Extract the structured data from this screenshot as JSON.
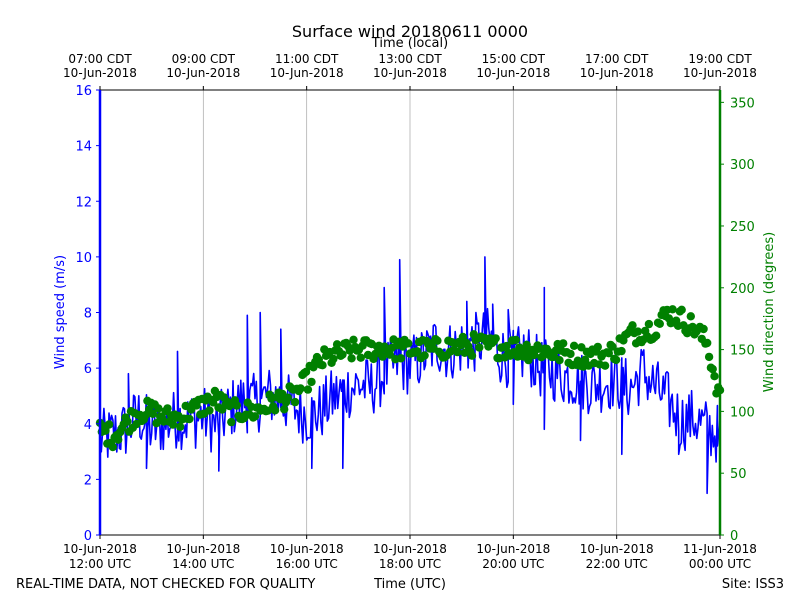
{
  "chart_data": {
    "type": "line",
    "title": "Surface wind 20180611 0000",
    "top_axis_label": "Time (local)",
    "top_ticks": [
      {
        "h": 0,
        "line1": "07:00 CDT",
        "line2": "10-Jun-2018"
      },
      {
        "h": 2,
        "line1": "09:00 CDT",
        "line2": "10-Jun-2018"
      },
      {
        "h": 4,
        "line1": "11:00 CDT",
        "line2": "10-Jun-2018"
      },
      {
        "h": 6,
        "line1": "13:00 CDT",
        "line2": "10-Jun-2018"
      },
      {
        "h": 8,
        "line1": "15:00 CDT",
        "line2": "10-Jun-2018"
      },
      {
        "h": 10,
        "line1": "17:00 CDT",
        "line2": "10-Jun-2018"
      },
      {
        "h": 12,
        "line1": "19:00 CDT",
        "line2": "10-Jun-2018"
      }
    ],
    "bottom_ticks": [
      {
        "h": 0,
        "line1": "10-Jun-2018",
        "line2": "12:00 UTC"
      },
      {
        "h": 2,
        "line1": "10-Jun-2018",
        "line2": "14:00 UTC"
      },
      {
        "h": 4,
        "line1": "10-Jun-2018",
        "line2": "16:00 UTC"
      },
      {
        "h": 6,
        "line1": "10-Jun-2018",
        "line2": "18:00 UTC"
      },
      {
        "h": 8,
        "line1": "10-Jun-2018",
        "line2": "20:00 UTC"
      },
      {
        "h": 10,
        "line1": "10-Jun-2018",
        "line2": "22:00 UTC"
      },
      {
        "h": 12,
        "line1": "11-Jun-2018",
        "line2": "00:00 UTC"
      }
    ],
    "x_range_hours": [
      0,
      12
    ],
    "left_axis": {
      "label": "Wind speed (m/s)",
      "ylim": [
        0,
        16
      ],
      "ticks": [
        0,
        2,
        4,
        6,
        8,
        10,
        12,
        14,
        16
      ],
      "color": "#0000ff"
    },
    "right_axis": {
      "label": "Wind direction (degrees)",
      "ylim": [
        0,
        360
      ],
      "ticks": [
        0,
        50,
        100,
        150,
        200,
        250,
        300,
        350
      ],
      "color": "#008000"
    },
    "grid": "vertical",
    "footer_left": "REAL-TIME DATA, NOT CHECKED FOR QUALITY",
    "footer_center": "Time (UTC)",
    "footer_right": "Site: ISS3",
    "series": [
      {
        "name": "Wind speed",
        "axis": "left",
        "style": "line",
        "color": "#0000ff",
        "x_hours": [
          0.0,
          0.25,
          0.5,
          0.75,
          1.0,
          1.25,
          1.5,
          1.75,
          2.0,
          2.25,
          2.5,
          2.75,
          3.0,
          3.25,
          3.5,
          3.75,
          4.0,
          4.25,
          4.5,
          4.75,
          5.0,
          5.25,
          5.5,
          5.75,
          6.0,
          6.25,
          6.5,
          6.75,
          7.0,
          7.25,
          7.5,
          7.75,
          8.0,
          8.25,
          8.5,
          8.75,
          9.0,
          9.25,
          9.5,
          9.75,
          10.0,
          10.25,
          10.5,
          10.75,
          11.0,
          11.25,
          11.5,
          11.75,
          12.0
        ],
        "values": [
          3.4,
          3.6,
          3.8,
          4.3,
          3.8,
          4.0,
          4.2,
          4.1,
          4.3,
          3.9,
          4.5,
          4.8,
          4.7,
          5.0,
          4.9,
          4.6,
          4.3,
          4.4,
          4.9,
          5.2,
          5.4,
          5.3,
          5.8,
          6.2,
          6.1,
          6.4,
          6.9,
          6.6,
          6.8,
          6.9,
          7.1,
          6.5,
          6.3,
          6.6,
          6.0,
          5.9,
          5.7,
          5.6,
          5.4,
          5.5,
          5.6,
          5.2,
          5.9,
          5.3,
          4.8,
          4.1,
          4.2,
          3.8,
          3.6
        ],
        "spikes": [
          {
            "x_hour": 0.55,
            "value": 5.8
          },
          {
            "x_hour": 0.9,
            "value": 2.4
          },
          {
            "x_hour": 1.5,
            "value": 6.6
          },
          {
            "x_hour": 2.3,
            "value": 2.3
          },
          {
            "x_hour": 2.85,
            "value": 7.9
          },
          {
            "x_hour": 3.1,
            "value": 8.0
          },
          {
            "x_hour": 3.5,
            "value": 7.4
          },
          {
            "x_hour": 4.1,
            "value": 2.4
          },
          {
            "x_hour": 4.7,
            "value": 2.4
          },
          {
            "x_hour": 5.5,
            "value": 8.9
          },
          {
            "x_hour": 5.8,
            "value": 9.9
          },
          {
            "x_hour": 7.1,
            "value": 8.4
          },
          {
            "x_hour": 7.45,
            "value": 10.0
          },
          {
            "x_hour": 7.6,
            "value": 8.3
          },
          {
            "x_hour": 7.9,
            "value": 8.1
          },
          {
            "x_hour": 8.0,
            "value": 4.7
          },
          {
            "x_hour": 8.6,
            "value": 8.9
          },
          {
            "x_hour": 8.6,
            "value": 3.8
          },
          {
            "x_hour": 9.3,
            "value": 3.4
          },
          {
            "x_hour": 10.1,
            "value": 2.9
          },
          {
            "x_hour": 11.2,
            "value": 2.9
          },
          {
            "x_hour": 11.75,
            "value": 1.5
          },
          {
            "x_hour": 11.95,
            "value": 3.2
          }
        ]
      },
      {
        "name": "Wind direction",
        "axis": "right",
        "style": "markers",
        "color": "#008000",
        "x_hours": [
          0.0,
          0.25,
          0.5,
          0.75,
          1.0,
          1.25,
          1.5,
          1.75,
          2.0,
          2.25,
          2.5,
          2.75,
          3.0,
          3.25,
          3.5,
          3.75,
          4.0,
          4.25,
          4.5,
          4.75,
          5.0,
          5.25,
          5.5,
          5.75,
          6.0,
          6.25,
          6.5,
          6.75,
          7.0,
          7.25,
          7.5,
          7.75,
          8.0,
          8.25,
          8.5,
          8.75,
          9.0,
          9.25,
          9.5,
          9.75,
          10.0,
          10.25,
          10.5,
          10.75,
          11.0,
          11.25,
          11.5,
          11.75,
          12.0
        ],
        "values": [
          85,
          80,
          90,
          100,
          100,
          95,
          95,
          100,
          105,
          110,
          100,
          100,
          100,
          105,
          110,
          112,
          125,
          140,
          145,
          148,
          150,
          150,
          152,
          150,
          150,
          150,
          150,
          152,
          152,
          154,
          152,
          152,
          152,
          150,
          150,
          148,
          147,
          145,
          145,
          145,
          150,
          162,
          165,
          168,
          180,
          175,
          168,
          155,
          110
        ]
      }
    ]
  }
}
